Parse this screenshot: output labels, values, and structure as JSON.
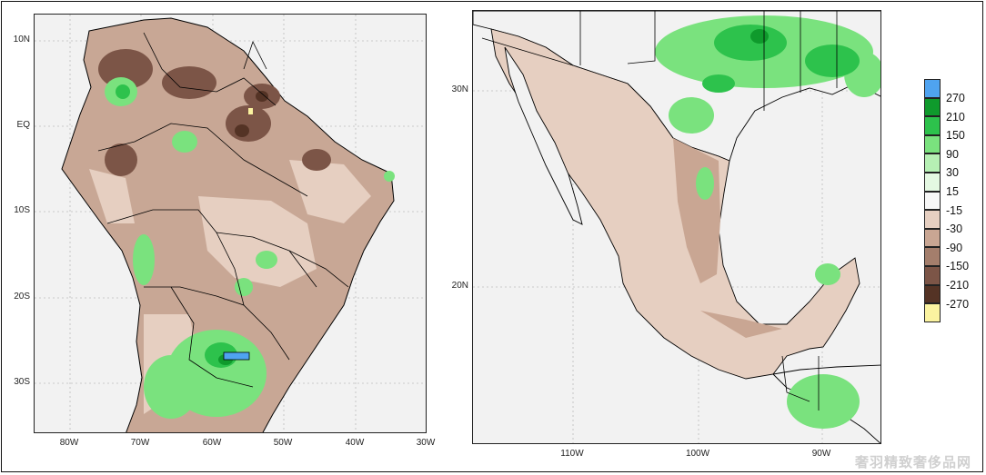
{
  "panels": {
    "south_america": {
      "lat_labels": [
        "10N",
        "EQ",
        "10S",
        "20S",
        "30S"
      ],
      "lon_labels": [
        "80W",
        "70W",
        "60W",
        "50W",
        "40W",
        "30W"
      ]
    },
    "mexico": {
      "lat_labels": [
        "30N",
        "20N"
      ],
      "lon_labels": [
        "110W",
        "100W",
        "90W"
      ]
    }
  },
  "legend": {
    "entries": [
      {
        "label": "270",
        "color": "#4fa3f0"
      },
      {
        "label": "210",
        "color": "#0f9a2c"
      },
      {
        "label": "150",
        "color": "#2dc24c"
      },
      {
        "label": "90",
        "color": "#7ae27e"
      },
      {
        "label": "30",
        "color": "#b6f0b4"
      },
      {
        "label": "15",
        "color": "#e4f8e2"
      },
      {
        "label": "-15",
        "color": "#f7f7f7"
      },
      {
        "label": "-30",
        "color": "#e6cfc1"
      },
      {
        "label": "-90",
        "color": "#c9a693"
      },
      {
        "label": "-150",
        "color": "#a47e6c"
      },
      {
        "label": "-210",
        "color": "#7c5547"
      },
      {
        "label": "-270",
        "color": "#543325"
      },
      {
        "label": "",
        "color": "#fbf3a0"
      }
    ]
  },
  "watermark": "奢羽精致奢侈品网"
}
